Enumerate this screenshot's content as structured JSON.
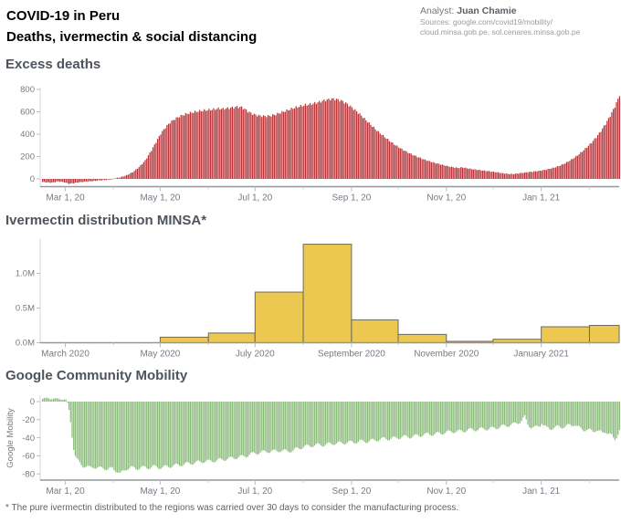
{
  "header": {
    "title_line1": "COVID-19 in Peru",
    "title_line2": "Deaths, ivermectin & social distancing",
    "analyst_label": "Analyst:",
    "analyst_name": "Juan Chamie",
    "sources_line1": "Sources: google.com/covid19/mobility/",
    "sources_line2": "cloud.minsa.gob.pe, sol.cenares.minsa.gob.pe"
  },
  "footnote": "* The pure ivermectin distributed to the regions was carried over 30 days to consider the manufacturing process.",
  "colors": {
    "deaths_fill": "#bb3439",
    "ivermectin_fill": "#ecc850",
    "ivermectin_stroke": "#6d6a60",
    "mobility_fill": "#8cbc7c",
    "title_gray": "#4e545c",
    "axis_text": "#747b83",
    "axis_line_left": "#d2d5d8",
    "axis_line_bottom": "#939799",
    "tick_mark": "#b9bec4"
  },
  "x_axis_shared": {
    "epoch_day0": "2020-02-15",
    "total_days": 372,
    "tick_days": [
      15,
      76,
      137,
      199,
      260,
      321
    ],
    "minor_tick_days": [
      46,
      107,
      168,
      229,
      290,
      352
    ]
  },
  "chart_data": [
    {
      "type": "bar",
      "title": "Excess deaths",
      "xlabel": "",
      "ylabel": "",
      "grid": false,
      "legend": "none",
      "y_ticks": [
        0,
        200,
        400,
        600,
        800
      ],
      "y_tick_labels": [
        "0",
        "200",
        "400",
        "600",
        "800"
      ],
      "ylim": [
        -100,
        830
      ],
      "x_tick_labels": [
        "Mar 1, 20",
        "May 1, 20",
        "Jul 1, 20",
        "Sep 1, 20",
        "Nov 1, 20",
        "Jan 1, 21"
      ],
      "bar_width_days": 1,
      "series_note": "daily excess deaths, keypoints [day_offset_from_2020-02-15, value]",
      "keypoints": [
        [
          0,
          -28
        ],
        [
          6,
          -34
        ],
        [
          10,
          -22
        ],
        [
          14,
          -30
        ],
        [
          17,
          -44
        ],
        [
          20,
          -38
        ],
        [
          24,
          -30
        ],
        [
          28,
          -24
        ],
        [
          32,
          -20
        ],
        [
          36,
          -14
        ],
        [
          40,
          -10
        ],
        [
          44,
          -5
        ],
        [
          46,
          4
        ],
        [
          50,
          14
        ],
        [
          54,
          32
        ],
        [
          58,
          60
        ],
        [
          62,
          105
        ],
        [
          66,
          165
        ],
        [
          70,
          255
        ],
        [
          73,
          330
        ],
        [
          76,
          405
        ],
        [
          79,
          460
        ],
        [
          82,
          505
        ],
        [
          85,
          535
        ],
        [
          88,
          558
        ],
        [
          91,
          575
        ],
        [
          94,
          588
        ],
        [
          97,
          597
        ],
        [
          100,
          605
        ],
        [
          103,
          611
        ],
        [
          107,
          617
        ],
        [
          110,
          622
        ],
        [
          113,
          629
        ],
        [
          116,
          626
        ],
        [
          119,
          632
        ],
        [
          122,
          638
        ],
        [
          125,
          644
        ],
        [
          128,
          641
        ],
        [
          130,
          624
        ],
        [
          132,
          604
        ],
        [
          134,
          588
        ],
        [
          136,
          576
        ],
        [
          138,
          569
        ],
        [
          141,
          563
        ],
        [
          144,
          561
        ],
        [
          147,
          566
        ],
        [
          150,
          577
        ],
        [
          153,
          592
        ],
        [
          156,
          607
        ],
        [
          159,
          622
        ],
        [
          162,
          636
        ],
        [
          165,
          648
        ],
        [
          168,
          658
        ],
        [
          171,
          665
        ],
        [
          174,
          674
        ],
        [
          177,
          684
        ],
        [
          180,
          697
        ],
        [
          183,
          708
        ],
        [
          186,
          716
        ],
        [
          189,
          712
        ],
        [
          192,
          700
        ],
        [
          195,
          678
        ],
        [
          198,
          648
        ],
        [
          201,
          615
        ],
        [
          204,
          578
        ],
        [
          207,
          538
        ],
        [
          210,
          498
        ],
        [
          213,
          458
        ],
        [
          216,
          420
        ],
        [
          219,
          386
        ],
        [
          222,
          352
        ],
        [
          225,
          320
        ],
        [
          228,
          292
        ],
        [
          231,
          266
        ],
        [
          234,
          243
        ],
        [
          237,
          222
        ],
        [
          240,
          203
        ],
        [
          243,
          186
        ],
        [
          246,
          170
        ],
        [
          249,
          156
        ],
        [
          252,
          144
        ],
        [
          255,
          133
        ],
        [
          258,
          122
        ],
        [
          261,
          112
        ],
        [
          264,
          104
        ],
        [
          267,
          98
        ],
        [
          270,
          103
        ],
        [
          273,
          95
        ],
        [
          276,
          88
        ],
        [
          279,
          82
        ],
        [
          283,
          75
        ],
        [
          287,
          68
        ],
        [
          290,
          63
        ],
        [
          293,
          57
        ],
        [
          296,
          50
        ],
        [
          299,
          45
        ],
        [
          302,
          43
        ],
        [
          305,
          47
        ],
        [
          308,
          53
        ],
        [
          311,
          58
        ],
        [
          314,
          63
        ],
        [
          317,
          68
        ],
        [
          320,
          73
        ],
        [
          323,
          80
        ],
        [
          326,
          90
        ],
        [
          329,
          101
        ],
        [
          332,
          115
        ],
        [
          335,
          133
        ],
        [
          338,
          155
        ],
        [
          341,
          181
        ],
        [
          344,
          211
        ],
        [
          347,
          245
        ],
        [
          350,
          283
        ],
        [
          353,
          325
        ],
        [
          356,
          372
        ],
        [
          359,
          428
        ],
        [
          362,
          492
        ],
        [
          364,
          540
        ],
        [
          366,
          592
        ],
        [
          368,
          648
        ],
        [
          370,
          712
        ],
        [
          371,
          752
        ]
      ]
    },
    {
      "type": "bar",
      "title": "Ivermectin distribution MINSA*",
      "xlabel": "",
      "ylabel": "",
      "grid": false,
      "legend": "none",
      "y_ticks": [
        0,
        0.5,
        1.0
      ],
      "y_tick_labels": [
        "0.0M",
        "0.5M",
        "1.0M"
      ],
      "ylim": [
        0,
        1.55
      ],
      "unit": "millions of doses per month",
      "x_tick_labels": [
        "March 2020",
        "May 2020",
        "July 2020",
        "September 2020",
        "November 2020",
        "January 2021"
      ],
      "categories": [
        "March 2020",
        "April 2020",
        "May 2020",
        "June 2020",
        "July 2020",
        "August 2020",
        "September 2020",
        "October 2020",
        "November 2020",
        "December 2020",
        "January 2021",
        "February 2021"
      ],
      "month_start_days": [
        15,
        46,
        76,
        107,
        137,
        168,
        199,
        229,
        260,
        290,
        321,
        352,
        372
      ],
      "values": [
        0,
        0,
        0.08,
        0.14,
        0.73,
        1.42,
        0.33,
        0.12,
        0.02,
        0.05,
        0.23,
        0.25
      ]
    },
    {
      "type": "bar",
      "title": "Google Community Mobility",
      "xlabel": "",
      "ylabel": "Google Mobility",
      "grid": false,
      "legend": "none",
      "y_ticks": [
        0,
        -20,
        -40,
        -60,
        -80
      ],
      "y_tick_labels": [
        "0",
        "-20",
        "-40",
        "-60",
        "-80"
      ],
      "ylim": [
        7,
        -87
      ],
      "x_tick_labels": [
        "Mar 1, 20",
        "May 1, 20",
        "Jul 1, 20",
        "Sep 1, 20",
        "Nov 1, 20",
        "Jan 1, 21"
      ],
      "bar_width_days": 1,
      "series_note": "daily mobility change %, keypoints [day_offset_from_2020-02-15, value]",
      "keypoints": [
        [
          0,
          3
        ],
        [
          4,
          4
        ],
        [
          8,
          3
        ],
        [
          12,
          3
        ],
        [
          15,
          2
        ],
        [
          16,
          -2
        ],
        [
          17,
          -10
        ],
        [
          18,
          -22
        ],
        [
          19,
          -38
        ],
        [
          20,
          -52
        ],
        [
          21,
          -60
        ],
        [
          22,
          -64
        ],
        [
          24,
          -68
        ],
        [
          26,
          -71
        ],
        [
          28,
          -72
        ],
        [
          30,
          -73
        ],
        [
          33,
          -72
        ],
        [
          36,
          -74
        ],
        [
          39,
          -73
        ],
        [
          42,
          -75
        ],
        [
          45,
          -74
        ],
        [
          48,
          -77
        ],
        [
          50,
          -80
        ],
        [
          52,
          -77
        ],
        [
          54,
          -74
        ],
        [
          57,
          -73
        ],
        [
          60,
          -74
        ],
        [
          64,
          -73
        ],
        [
          68,
          -73
        ],
        [
          72,
          -72
        ],
        [
          76,
          -73
        ],
        [
          80,
          -72
        ],
        [
          84,
          -71
        ],
        [
          88,
          -70
        ],
        [
          92,
          -69
        ],
        [
          96,
          -68
        ],
        [
          100,
          -67
        ],
        [
          104,
          -66
        ],
        [
          108,
          -66
        ],
        [
          112,
          -65
        ],
        [
          116,
          -64
        ],
        [
          120,
          -63
        ],
        [
          124,
          -62
        ],
        [
          128,
          -61
        ],
        [
          131,
          -60
        ],
        [
          134,
          -58
        ],
        [
          137,
          -57
        ],
        [
          141,
          -56
        ],
        [
          145,
          -55
        ],
        [
          149,
          -55
        ],
        [
          153,
          -54
        ],
        [
          157,
          -55
        ],
        [
          161,
          -54
        ],
        [
          164,
          -52
        ],
        [
          168,
          -50
        ],
        [
          172,
          -49
        ],
        [
          176,
          -48
        ],
        [
          180,
          -48
        ],
        [
          184,
          -47
        ],
        [
          188,
          -46
        ],
        [
          192,
          -46
        ],
        [
          196,
          -45
        ],
        [
          200,
          -45
        ],
        [
          204,
          -44
        ],
        [
          208,
          -44
        ],
        [
          212,
          -43
        ],
        [
          216,
          -42
        ],
        [
          220,
          -41
        ],
        [
          224,
          -41
        ],
        [
          228,
          -40
        ],
        [
          232,
          -39
        ],
        [
          236,
          -39
        ],
        [
          240,
          -38
        ],
        [
          244,
          -37
        ],
        [
          248,
          -36
        ],
        [
          252,
          -36
        ],
        [
          256,
          -35
        ],
        [
          260,
          -34
        ],
        [
          264,
          -33
        ],
        [
          268,
          -33
        ],
        [
          272,
          -32
        ],
        [
          276,
          -31
        ],
        [
          280,
          -31
        ],
        [
          284,
          -30
        ],
        [
          288,
          -30
        ],
        [
          291,
          -29
        ],
        [
          294,
          -28
        ],
        [
          297,
          -27
        ],
        [
          300,
          -26
        ],
        [
          303,
          -25
        ],
        [
          306,
          -23
        ],
        [
          308,
          -21
        ],
        [
          310,
          -17
        ],
        [
          311,
          -21
        ],
        [
          312,
          -25
        ],
        [
          314,
          -28
        ],
        [
          316,
          -29
        ],
        [
          318,
          -28
        ],
        [
          320,
          -26
        ],
        [
          321,
          -23
        ],
        [
          322,
          -26
        ],
        [
          324,
          -29
        ],
        [
          326,
          -30
        ],
        [
          328,
          -29
        ],
        [
          331,
          -28
        ],
        [
          334,
          -28
        ],
        [
          337,
          -27
        ],
        [
          340,
          -26
        ],
        [
          342,
          -25
        ],
        [
          344,
          -28
        ],
        [
          346,
          -30
        ],
        [
          348,
          -31
        ],
        [
          350,
          -31
        ],
        [
          352,
          -32
        ],
        [
          354,
          -33
        ],
        [
          356,
          -31
        ],
        [
          358,
          -33
        ],
        [
          360,
          -35
        ],
        [
          362,
          -33
        ],
        [
          364,
          -35
        ],
        [
          366,
          -38
        ],
        [
          367,
          -41
        ],
        [
          368,
          -42
        ],
        [
          369,
          -39
        ],
        [
          370,
          -35
        ],
        [
          371,
          -31
        ]
      ]
    }
  ]
}
